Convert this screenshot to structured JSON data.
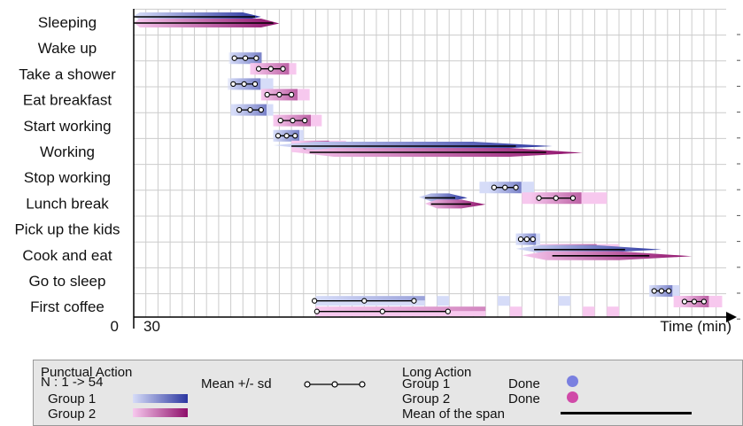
{
  "chart_data": {
    "type": "timeline",
    "xlabel": "Time (min)",
    "x_origin_label": "0",
    "x_tick_labels": [
      "30"
    ],
    "xlim": [
      0,
      30
    ],
    "grid": true,
    "activities": [
      {
        "name": "Sleeping",
        "kind": "long",
        "g1": {
          "start": [
            0,
            0.5
          ],
          "end": [
            9.0,
            10.5
          ],
          "mean": [
            0,
            10.0
          ]
        },
        "g2": {
          "start": [
            0,
            0.5
          ],
          "end": [
            10.5,
            12.0
          ],
          "mean": [
            0,
            11.5
          ]
        }
      },
      {
        "name": "Wake up",
        "kind": "punctual",
        "g1": {
          "range": [
            8.0,
            10.5
          ],
          "mean": 9.2,
          "sd": 0.9
        },
        "g2": {
          "range": [
            9.6,
            13.4
          ],
          "mean": 11.3,
          "sd": 1.0
        }
      },
      {
        "name": "Take a shower",
        "kind": "punctual",
        "g1": {
          "range": [
            8.0,
            11.5
          ],
          "mean": 9.1,
          "sd": 0.9
        },
        "g2": {
          "range": [
            10.5,
            14.5
          ],
          "mean": 12.0,
          "sd": 1.0
        }
      },
      {
        "name": "Eat breakfast",
        "kind": "punctual",
        "g1": {
          "range": [
            8.0,
            11.5
          ],
          "mean": 9.6,
          "sd": 0.9
        },
        "g2": {
          "range": [
            11.5,
            15.5
          ],
          "mean": 13.1,
          "sd": 1.0
        }
      },
      {
        "name": "Start working",
        "kind": "punctual",
        "g1": {
          "range": [
            11.5,
            14.0
          ],
          "mean": 12.6,
          "sd": 0.7
        },
        "g2": {
          "range": [
            13.0,
            17.5
          ],
          "mean": 14.9,
          "sd": 0.8
        }
      },
      {
        "name": "Working",
        "kind": "long",
        "g1": {
          "start": [
            11.5,
            15.0
          ],
          "end": [
            28.0,
            34.5
          ],
          "mean": [
            13.0,
            31.5
          ]
        },
        "g2": {
          "start": [
            13.0,
            16.5
          ],
          "end": [
            31.0,
            37.0
          ],
          "mean": [
            14.5,
            34.0
          ]
        }
      },
      {
        "name": "Stop working",
        "kind": "punctual",
        "g1": {
          "range": [
            28.5,
            33.0
          ],
          "mean": 30.6,
          "sd": 0.9
        },
        "g2": {
          "range": [
            32.0,
            39.0
          ],
          "mean": 34.8,
          "sd": 1.4
        }
      },
      {
        "name": "Lunch break",
        "kind": "long",
        "g1": {
          "start": [
            23.5,
            24.5
          ],
          "end": [
            26.0,
            27.5
          ],
          "mean": [
            24.0,
            26.5
          ]
        },
        "g2": {
          "start": [
            24.0,
            25.0
          ],
          "end": [
            27.0,
            29.0
          ],
          "mean": [
            24.5,
            27.8
          ]
        }
      },
      {
        "name": "Pick up the kids",
        "kind": "punctual",
        "g1": {
          "range": [
            31.5,
            33.5
          ],
          "mean": 32.4,
          "sd": 0.5
        },
        "g2": {
          "range": [
            33.5,
            40.0
          ],
          "mean": 35.9,
          "sd": 1.5
        }
      },
      {
        "name": "Cook and eat",
        "kind": "long",
        "g1": {
          "start": [
            31.5,
            33.5
          ],
          "end": [
            38.0,
            43.5
          ],
          "mean": [
            33.0,
            40.5
          ]
        },
        "g2": {
          "start": [
            32.0,
            34.0
          ],
          "end": [
            40.0,
            46.0
          ],
          "mean": [
            34.5,
            42.5
          ]
        }
      },
      {
        "name": "Go to sleep",
        "kind": "punctual",
        "g1": {
          "range": [
            42.5,
            45.0
          ],
          "mean": 43.5,
          "sd": 0.6
        },
        "g2": {
          "range": [
            44.5,
            48.5
          ],
          "mean": 46.2,
          "sd": 0.8
        }
      },
      {
        "name": "First coffee",
        "kind": "multi",
        "g1": {
          "blocks": [
            [
              15.0,
              24.0
            ],
            [
              25.0,
              26.0
            ],
            [
              30.0,
              31.0
            ],
            [
              35.0,
              36.0
            ]
          ],
          "mean": 19.0,
          "sd": 4.1
        },
        "g2": {
          "blocks": [
            [
              15.0,
              29.0
            ],
            [
              31.0,
              32.0
            ],
            [
              37.0,
              38.0
            ],
            [
              39.0,
              40.0
            ]
          ],
          "mean": 20.5,
          "sd": 5.4
        }
      }
    ]
  },
  "legend": {
    "punctual_title": "Punctual Action",
    "punctual_n": "N : 1 -> 54",
    "group1": "Group 1",
    "group2": "Group 2",
    "mean_sd": "Mean +/- sd",
    "long_title": "Long Action",
    "long_group1": "Group 1",
    "long_group2": "Group 2",
    "done1": "Done",
    "done2": "Done",
    "mean_span": "Mean of the span"
  },
  "colors": {
    "g1_dark": "#2b36a0",
    "g1_light": "#d6dcf8",
    "g2_dark": "#8e0f6a",
    "g2_light": "#f7c8ee",
    "g1_dot": "#7a80e0",
    "g2_dot": "#d04aa8",
    "grid": "#cccccc"
  }
}
